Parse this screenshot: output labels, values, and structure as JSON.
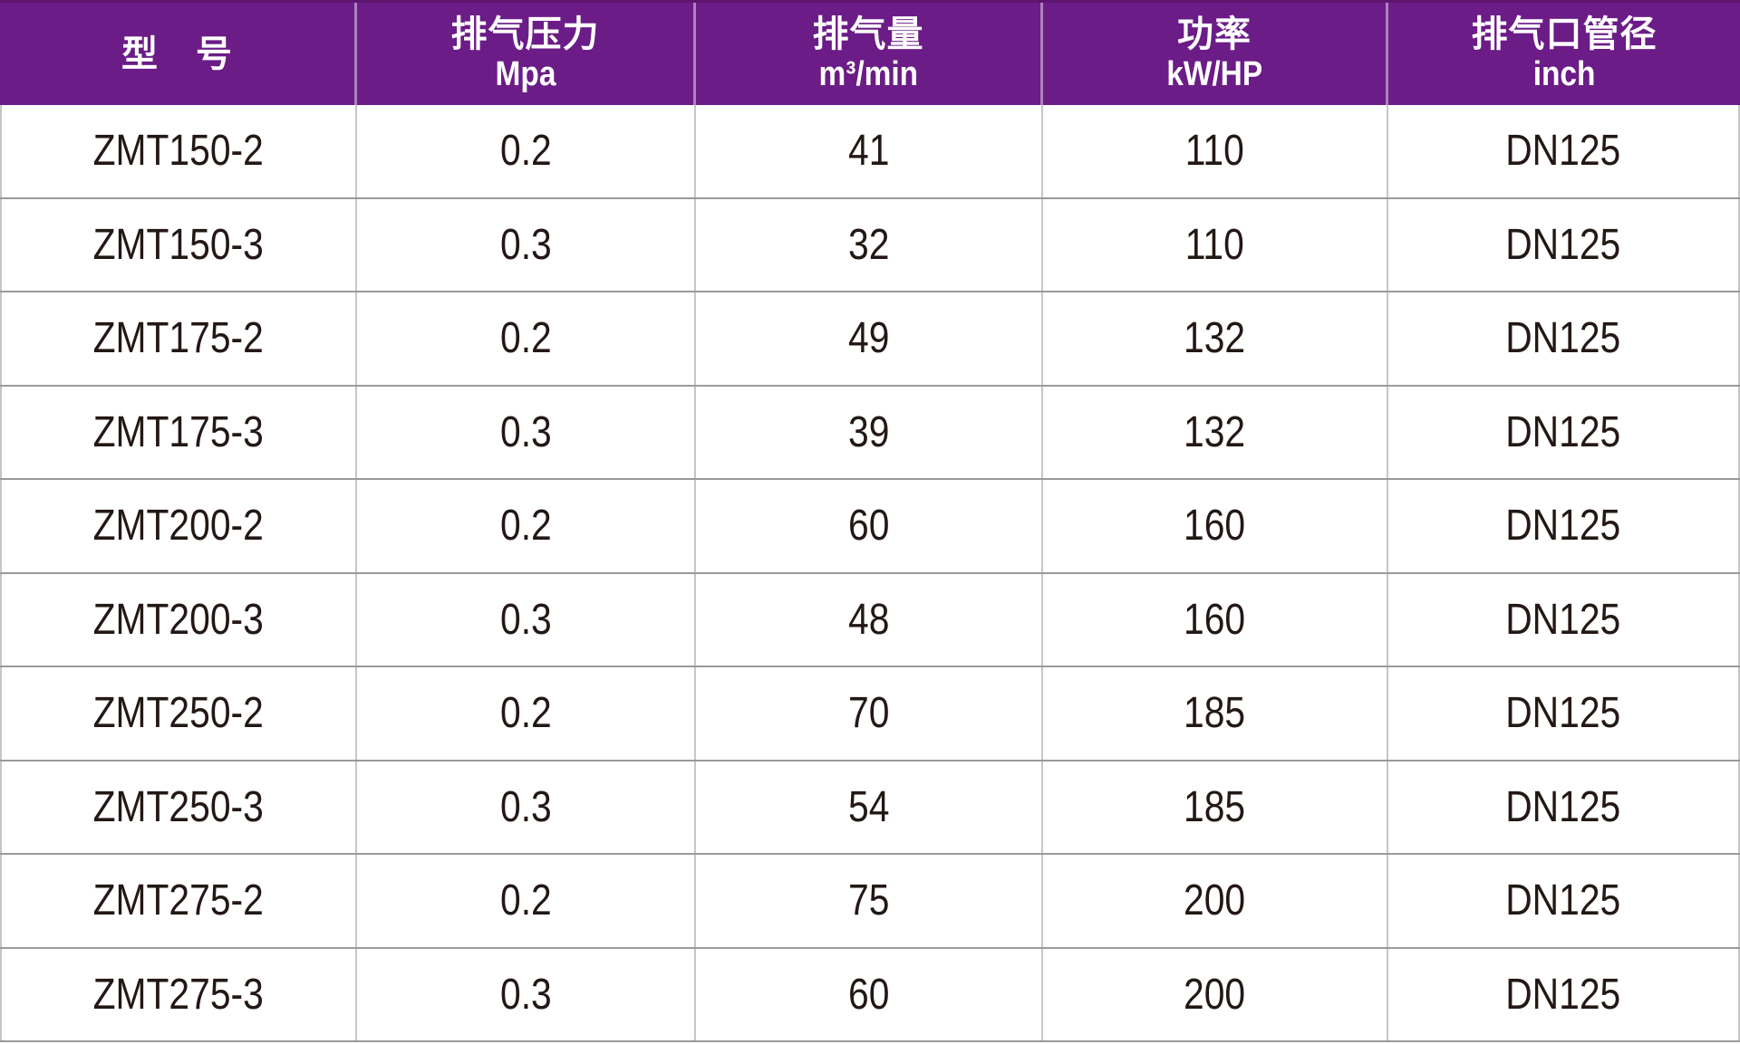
{
  "table": {
    "columns": [
      {
        "title": "型　号",
        "unit": ""
      },
      {
        "title": "排气压力",
        "unit": "Mpa"
      },
      {
        "title": "排气量",
        "unit": "m³/min"
      },
      {
        "title": "功率",
        "unit": "kW/HP"
      },
      {
        "title": "排气口管径",
        "unit": "inch"
      }
    ],
    "rows": [
      {
        "model": "ZMT150-2",
        "pressure": "0.2",
        "flow": "41",
        "power": "110",
        "pipe": "DN125"
      },
      {
        "model": "ZMT150-3",
        "pressure": "0.3",
        "flow": "32",
        "power": "110",
        "pipe": "DN125"
      },
      {
        "model": "ZMT175-2",
        "pressure": "0.2",
        "flow": "49",
        "power": "132",
        "pipe": "DN125"
      },
      {
        "model": "ZMT175-3",
        "pressure": "0.3",
        "flow": "39",
        "power": "132",
        "pipe": "DN125"
      },
      {
        "model": "ZMT200-2",
        "pressure": "0.2",
        "flow": "60",
        "power": "160",
        "pipe": "DN125"
      },
      {
        "model": "ZMT200-3",
        "pressure": "0.3",
        "flow": "48",
        "power": "160",
        "pipe": "DN125"
      },
      {
        "model": "ZMT250-2",
        "pressure": "0.2",
        "flow": "70",
        "power": "185",
        "pipe": "DN125"
      },
      {
        "model": "ZMT250-3",
        "pressure": "0.3",
        "flow": "54",
        "power": "185",
        "pipe": "DN125"
      },
      {
        "model": "ZMT275-2",
        "pressure": "0.2",
        "flow": "75",
        "power": "200",
        "pipe": "DN125"
      },
      {
        "model": "ZMT275-3",
        "pressure": "0.3",
        "flow": "60",
        "power": "200",
        "pipe": "DN125"
      }
    ]
  },
  "colors": {
    "header_bg": "#6B1C87",
    "header_text": "#FFFFFF",
    "body_text": "#231815",
    "row_border": "#9A9A9A",
    "column_border": "#C6C6C6"
  }
}
